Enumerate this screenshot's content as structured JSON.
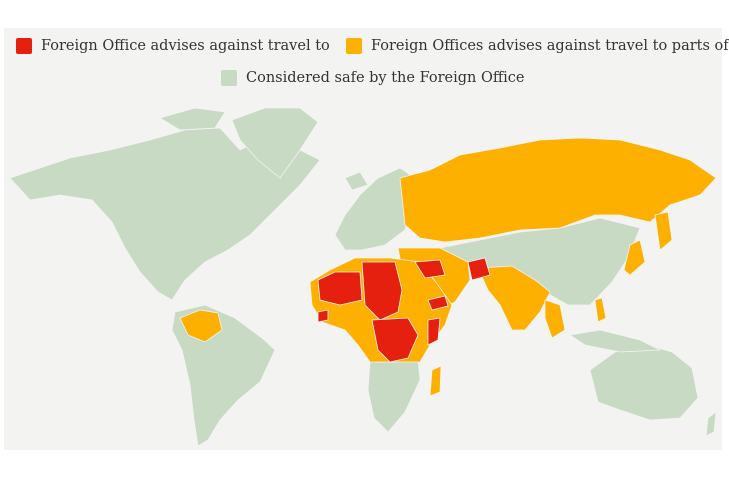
{
  "legend": [
    {
      "label": "Foreign Office advises against travel to",
      "color": "#e5200e"
    },
    {
      "label": "Foreign Offices advises against travel to parts of",
      "color": "#fdb000"
    },
    {
      "label": "Considered safe by the Foreign Office",
      "color": "#c8d9c4"
    }
  ],
  "colors": {
    "background": "#f3f3f1",
    "safe": "#c8d9c4",
    "partial": "#fdb000",
    "against": "#e5200e"
  }
}
